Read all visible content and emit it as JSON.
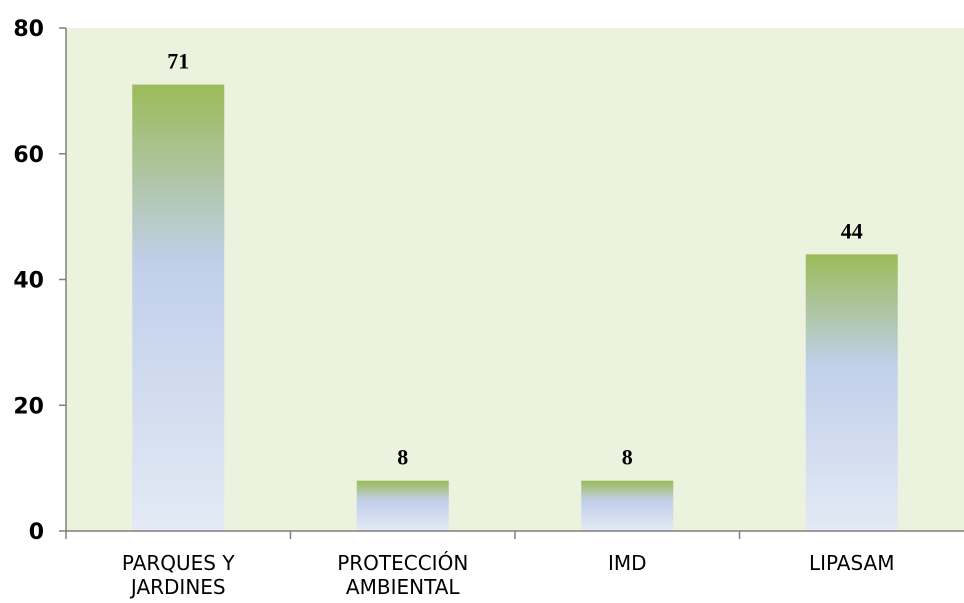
{
  "chart_data": {
    "type": "bar",
    "categories": [
      [
        "PARQUES Y",
        "JARDINES"
      ],
      [
        "PROTECCIÓN",
        "AMBIENTAL"
      ],
      [
        "IMD"
      ],
      [
        "LIPASAM"
      ]
    ],
    "values": [
      71,
      8,
      8,
      44
    ],
    "data_labels": [
      "71",
      "8",
      "8",
      "44"
    ],
    "y_ticks": [
      {
        "value": 0,
        "label": "0"
      },
      {
        "value": 20,
        "label": "20"
      },
      {
        "value": 40,
        "label": "40"
      },
      {
        "value": 60,
        "label": "60"
      },
      {
        "value": 80,
        "label": "80"
      }
    ],
    "ylim": [
      0,
      80
    ],
    "grid": false,
    "legend": "none",
    "colors": {
      "plot_background": "#ebf2dd",
      "bar_top": "#9bbb59",
      "bar_mid": "#c1cfea",
      "bar_bottom": "#e3eaf5",
      "axis": "#7f7f7f"
    }
  }
}
